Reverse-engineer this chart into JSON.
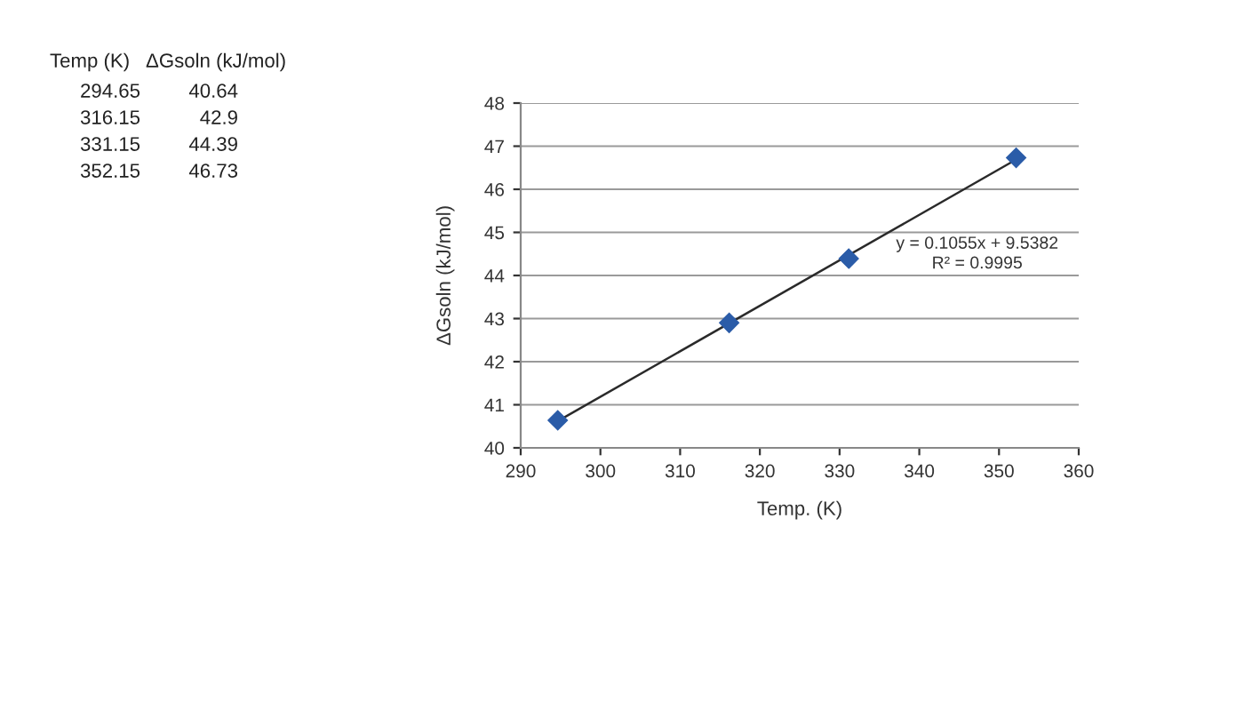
{
  "chart_data": {
    "type": "scatter",
    "xlabel": "Temp. (K)",
    "ylabel": "ΔGsoln (kJ/mol)",
    "marker": "diamond",
    "grid": "y",
    "xlim": [
      290,
      360
    ],
    "xticks": [
      290,
      300,
      310,
      320,
      330,
      340,
      350,
      360
    ],
    "ylim": [
      40,
      48
    ],
    "yticks": [
      40,
      41,
      42,
      43,
      44,
      45,
      46,
      47,
      48
    ],
    "series": [
      {
        "color": "#2b5ca8",
        "x": [
          294.65,
          316.15,
          331.15,
          352.15
        ],
        "values": [
          40.64,
          42.9,
          44.39,
          46.73
        ]
      },
      {
        "type": "line",
        "color": "#2a2a2a",
        "marker": "none",
        "line_style": "solid",
        "x": [
          294.65,
          352.15
        ],
        "values": [
          40.62,
          46.69
        ]
      }
    ],
    "annotations": [
      "y = 0.1055x + 9.5382\nR² = 0.9995",
      "Temp (K)",
      "ΔGsoln (kJ/mol)",
      "294.65",
      "40.64",
      "316.15",
      "42.9",
      "331.15",
      "44.39",
      "352.15",
      "46.73"
    ]
  }
}
